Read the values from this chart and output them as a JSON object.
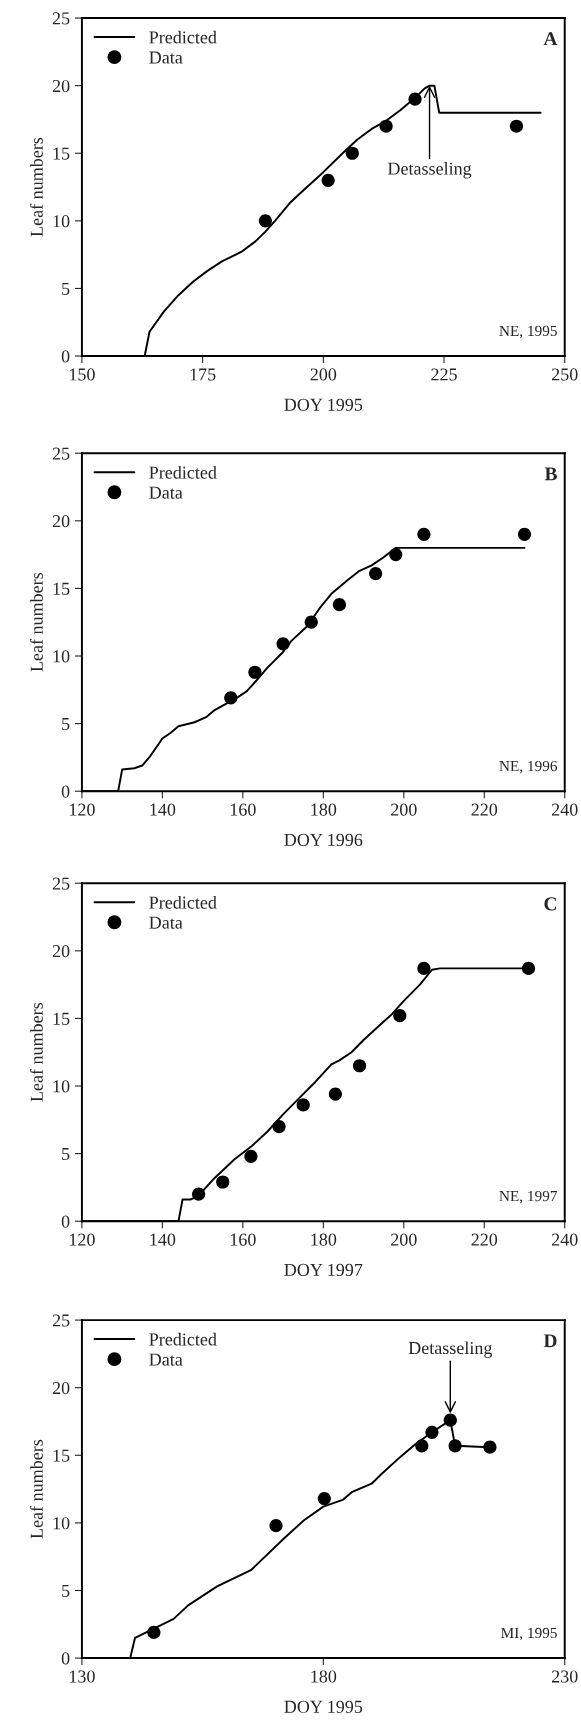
{
  "chart_data": [
    {
      "type": "line",
      "xlabel": "DOY 1995",
      "ylabel": "Leaf numbers",
      "xlim": [
        150,
        250
      ],
      "ylim": [
        0,
        25
      ],
      "xticks": [
        150,
        175,
        200,
        225,
        250
      ],
      "yticks": [
        0,
        5,
        10,
        15,
        20,
        25
      ],
      "legend": "top left",
      "grid": false,
      "annotations": [
        "A",
        "NE, 1995",
        {
          "text": "Detasseling",
          "x": 222,
          "y": 20
        }
      ],
      "series": [
        {
          "name": "Predicted",
          "color": "#000000",
          "marker": "none",
          "x": [
            163,
            164,
            167,
            170,
            173,
            176,
            179,
            183,
            186,
            188,
            190,
            193,
            196,
            200,
            204,
            207,
            210,
            213,
            216,
            219,
            221,
            222,
            223,
            224,
            245
          ],
          "values": [
            0,
            1.8,
            3.3,
            4.5,
            5.5,
            6.3,
            7,
            7.7,
            8.5,
            9.2,
            10,
            11.3,
            12.3,
            13.6,
            15,
            16,
            16.8,
            17.4,
            18.2,
            19.1,
            19.8,
            20,
            20,
            18,
            18
          ]
        },
        {
          "name": "Data",
          "type": "scatter",
          "color": "#000000",
          "marker": "circle",
          "x": [
            188,
            201,
            206,
            213,
            219,
            240
          ],
          "values": [
            10,
            13,
            15,
            17,
            19,
            17
          ]
        }
      ]
    },
    {
      "type": "line",
      "xlabel": "DOY 1996",
      "ylabel": "Leaf numbers",
      "xlim": [
        120,
        240
      ],
      "ylim": [
        0,
        25
      ],
      "xticks": [
        120,
        140,
        160,
        180,
        200,
        220,
        240
      ],
      "yticks": [
        0,
        5,
        10,
        15,
        20,
        25
      ],
      "legend": "top left",
      "grid": false,
      "annotations": [
        "B",
        "NE, 1996"
      ],
      "series": [
        {
          "name": "Predicted",
          "color": "#000000",
          "marker": "none",
          "x": [
            120,
            129,
            130,
            133,
            135,
            137,
            140,
            142,
            144,
            148,
            151,
            153,
            156,
            158,
            161,
            164,
            166,
            170,
            172,
            176,
            179,
            182,
            186,
            189,
            192,
            195,
            198,
            230
          ],
          "values": [
            0,
            0,
            1.6,
            1.7,
            1.9,
            2.6,
            3.9,
            4.3,
            4.8,
            5.1,
            5.5,
            6,
            6.5,
            6.8,
            7.4,
            8.4,
            9.1,
            10.3,
            11.1,
            12.2,
            13.5,
            14.6,
            15.6,
            16.3,
            16.7,
            17.3,
            18,
            18
          ]
        },
        {
          "name": "Data",
          "type": "scatter",
          "color": "#000000",
          "marker": "circle",
          "x": [
            157,
            163,
            170,
            177,
            184,
            193,
            198,
            205,
            230
          ],
          "values": [
            6.9,
            8.8,
            10.9,
            12.5,
            13.8,
            16.1,
            17.5,
            19,
            19
          ]
        }
      ]
    },
    {
      "type": "line",
      "xlabel": "DOY 1997",
      "ylabel": "Leaf numbers",
      "xlim": [
        120,
        240
      ],
      "ylim": [
        0,
        25
      ],
      "xticks": [
        120,
        140,
        160,
        180,
        200,
        220,
        240
      ],
      "yticks": [
        0,
        5,
        10,
        15,
        20,
        25
      ],
      "legend": "top left",
      "grid": false,
      "annotations": [
        "C",
        "NE, 1997"
      ],
      "series": [
        {
          "name": "Predicted",
          "color": "#000000",
          "marker": "none",
          "x": [
            120,
            144,
            145,
            147,
            149,
            153,
            158,
            162,
            166,
            170,
            174,
            178,
            182,
            184,
            187,
            190,
            194,
            197,
            200,
            204,
            207,
            209,
            231
          ],
          "values": [
            0,
            0,
            1.6,
            1.6,
            1.9,
            3.2,
            4.6,
            5.5,
            6.6,
            7.9,
            9.1,
            10.3,
            11.6,
            11.9,
            12.5,
            13.4,
            14.5,
            15.3,
            16.3,
            17.5,
            18.6,
            18.7,
            18.7
          ]
        },
        {
          "name": "Data",
          "type": "scatter",
          "color": "#000000",
          "marker": "circle",
          "x": [
            149,
            155,
            162,
            169,
            175,
            183,
            189,
            199,
            205,
            231
          ],
          "values": [
            2,
            2.9,
            4.8,
            7,
            8.6,
            9.4,
            11.5,
            15.2,
            18.7,
            18.7
          ]
        }
      ]
    },
    {
      "type": "line",
      "xlabel": "DOY 1995",
      "ylabel": "Leaf numbers",
      "xlim": [
        130,
        230
      ],
      "ylim": [
        0,
        25
      ],
      "xticks": [
        130,
        180,
        230
      ],
      "yticks": [
        0,
        5,
        10,
        15,
        20,
        25
      ],
      "legend": "top left",
      "grid": false,
      "annotations": [
        "D",
        "MI, 1995",
        {
          "text": "Detasseling",
          "x": 206.3,
          "y": 18.1
        }
      ],
      "series": [
        {
          "name": "Predicted",
          "color": "#000000",
          "marker": "none",
          "x": [
            130,
            140,
            141,
            145,
            149,
            152,
            158,
            165,
            172,
            176,
            180,
            184,
            186,
            190,
            192,
            196,
            199,
            202.5,
            206.3,
            207.3,
            214.4
          ],
          "values": [
            0,
            0,
            1.5,
            2.2,
            2.9,
            3.9,
            5.3,
            6.5,
            8.9,
            10.2,
            11.2,
            11.7,
            12.3,
            12.9,
            13.6,
            14.9,
            15.8,
            16.7,
            17.6,
            15.7,
            15.6
          ]
        },
        {
          "name": "Data",
          "type": "scatter",
          "color": "#000000",
          "marker": "circle",
          "x": [
            144.9,
            170.2,
            180.2,
            200.4,
            202.5,
            206.3,
            207.3,
            214.5
          ],
          "values": [
            1.9,
            9.8,
            11.8,
            15.7,
            16.7,
            17.6,
            15.7,
            15.6
          ]
        }
      ]
    }
  ]
}
